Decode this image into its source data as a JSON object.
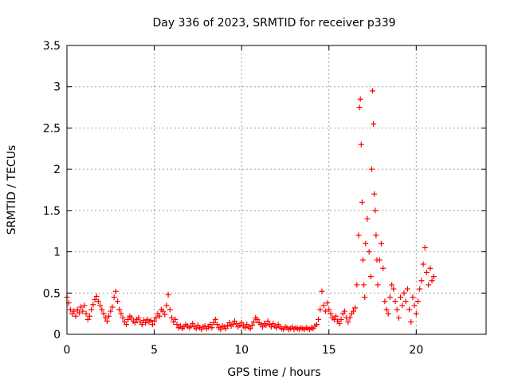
{
  "chart_data": {
    "type": "scatter",
    "title": "Day 336 of 2023, SRMTID for receiver p339",
    "xlabel": "GPS time / hours",
    "ylabel": "SRMTID / TECUs",
    "xlim": [
      0,
      24
    ],
    "ylim": [
      0,
      3.5
    ],
    "x_ticks": [
      0,
      5,
      10,
      15,
      20
    ],
    "x_tick_labels": [
      "0",
      "5",
      "10",
      "15",
      "20"
    ],
    "y_ticks": [
      0,
      0.5,
      1,
      1.5,
      2,
      2.5,
      3,
      3.5
    ],
    "y_tick_labels": [
      "0",
      "0.5",
      "1",
      "1.5",
      "2",
      "2.5",
      "3",
      "3.5"
    ],
    "grid": true,
    "marker": "plus",
    "marker_color": "#ff0000",
    "series": [
      {
        "name": "SRMTID",
        "points": [
          [
            0.0,
            0.45
          ],
          [
            0.1,
            0.38
          ],
          [
            0.2,
            0.3
          ],
          [
            0.3,
            0.25
          ],
          [
            0.4,
            0.28
          ],
          [
            0.5,
            0.22
          ],
          [
            0.6,
            0.3
          ],
          [
            0.7,
            0.26
          ],
          [
            0.8,
            0.33
          ],
          [
            0.9,
            0.28
          ],
          [
            1.0,
            0.35
          ],
          [
            1.1,
            0.25
          ],
          [
            1.2,
            0.18
          ],
          [
            1.3,
            0.22
          ],
          [
            1.4,
            0.3
          ],
          [
            1.5,
            0.36
          ],
          [
            1.6,
            0.42
          ],
          [
            1.7,
            0.46
          ],
          [
            1.8,
            0.4
          ],
          [
            1.9,
            0.35
          ],
          [
            2.0,
            0.3
          ],
          [
            2.1,
            0.25
          ],
          [
            2.2,
            0.2
          ],
          [
            2.3,
            0.16
          ],
          [
            2.4,
            0.22
          ],
          [
            2.5,
            0.28
          ],
          [
            2.6,
            0.33
          ],
          [
            2.7,
            0.45
          ],
          [
            2.8,
            0.52
          ],
          [
            2.9,
            0.4
          ],
          [
            3.0,
            0.3
          ],
          [
            3.1,
            0.25
          ],
          [
            3.2,
            0.2
          ],
          [
            3.3,
            0.15
          ],
          [
            3.4,
            0.12
          ],
          [
            3.5,
            0.18
          ],
          [
            3.6,
            0.22
          ],
          [
            3.7,
            0.2
          ],
          [
            3.8,
            0.16
          ],
          [
            3.9,
            0.14
          ],
          [
            4.0,
            0.18
          ],
          [
            4.1,
            0.2
          ],
          [
            4.2,
            0.15
          ],
          [
            4.3,
            0.12
          ],
          [
            4.4,
            0.17
          ],
          [
            4.5,
            0.14
          ],
          [
            4.6,
            0.18
          ],
          [
            4.7,
            0.15
          ],
          [
            4.8,
            0.17
          ],
          [
            4.9,
            0.12
          ],
          [
            5.0,
            0.16
          ],
          [
            5.1,
            0.2
          ],
          [
            5.2,
            0.25
          ],
          [
            5.3,
            0.22
          ],
          [
            5.4,
            0.3
          ],
          [
            5.5,
            0.28
          ],
          [
            5.6,
            0.24
          ],
          [
            5.7,
            0.35
          ],
          [
            5.8,
            0.48
          ],
          [
            5.9,
            0.3
          ],
          [
            6.0,
            0.2
          ],
          [
            6.1,
            0.15
          ],
          [
            6.2,
            0.18
          ],
          [
            6.3,
            0.12
          ],
          [
            6.4,
            0.08
          ],
          [
            6.5,
            0.1
          ],
          [
            6.6,
            0.07
          ],
          [
            6.7,
            0.09
          ],
          [
            6.8,
            0.12
          ],
          [
            6.9,
            0.1
          ],
          [
            7.0,
            0.08
          ],
          [
            7.1,
            0.1
          ],
          [
            7.2,
            0.13
          ],
          [
            7.3,
            0.09
          ],
          [
            7.4,
            0.07
          ],
          [
            7.5,
            0.11
          ],
          [
            7.6,
            0.08
          ],
          [
            7.7,
            0.06
          ],
          [
            7.8,
            0.09
          ],
          [
            7.9,
            0.1
          ],
          [
            8.0,
            0.07
          ],
          [
            8.1,
            0.09
          ],
          [
            8.2,
            0.12
          ],
          [
            8.3,
            0.08
          ],
          [
            8.4,
            0.14
          ],
          [
            8.5,
            0.18
          ],
          [
            8.6,
            0.12
          ],
          [
            8.7,
            0.08
          ],
          [
            8.8,
            0.06
          ],
          [
            8.9,
            0.1
          ],
          [
            9.0,
            0.09
          ],
          [
            9.1,
            0.07
          ],
          [
            9.2,
            0.11
          ],
          [
            9.3,
            0.14
          ],
          [
            9.4,
            0.1
          ],
          [
            9.5,
            0.12
          ],
          [
            9.6,
            0.16
          ],
          [
            9.7,
            0.13
          ],
          [
            9.8,
            0.09
          ],
          [
            9.9,
            0.11
          ],
          [
            10.0,
            0.14
          ],
          [
            10.1,
            0.1
          ],
          [
            10.2,
            0.08
          ],
          [
            10.3,
            0.12
          ],
          [
            10.4,
            0.09
          ],
          [
            10.5,
            0.07
          ],
          [
            10.6,
            0.11
          ],
          [
            10.7,
            0.15
          ],
          [
            10.8,
            0.2
          ],
          [
            10.9,
            0.18
          ],
          [
            11.0,
            0.14
          ],
          [
            11.1,
            0.12
          ],
          [
            11.2,
            0.09
          ],
          [
            11.3,
            0.13
          ],
          [
            11.4,
            0.11
          ],
          [
            11.5,
            0.16
          ],
          [
            11.6,
            0.12
          ],
          [
            11.7,
            0.09
          ],
          [
            11.8,
            0.13
          ],
          [
            11.9,
            0.1
          ],
          [
            12.0,
            0.08
          ],
          [
            12.1,
            0.12
          ],
          [
            12.2,
            0.09
          ],
          [
            12.3,
            0.07
          ],
          [
            12.4,
            0.06
          ],
          [
            12.5,
            0.09
          ],
          [
            12.6,
            0.08
          ],
          [
            12.7,
            0.06
          ],
          [
            12.8,
            0.07
          ],
          [
            12.9,
            0.09
          ],
          [
            13.0,
            0.06
          ],
          [
            13.1,
            0.08
          ],
          [
            13.2,
            0.07
          ],
          [
            13.3,
            0.06
          ],
          [
            13.4,
            0.08
          ],
          [
            13.5,
            0.07
          ],
          [
            13.6,
            0.06
          ],
          [
            13.7,
            0.08
          ],
          [
            13.8,
            0.07
          ],
          [
            13.9,
            0.06
          ],
          [
            14.0,
            0.08
          ],
          [
            14.1,
            0.07
          ],
          [
            14.2,
            0.1
          ],
          [
            14.3,
            0.12
          ],
          [
            14.4,
            0.18
          ],
          [
            14.5,
            0.3
          ],
          [
            14.6,
            0.52
          ],
          [
            14.7,
            0.35
          ],
          [
            14.8,
            0.28
          ],
          [
            14.9,
            0.38
          ],
          [
            15.0,
            0.3
          ],
          [
            15.1,
            0.25
          ],
          [
            15.2,
            0.2
          ],
          [
            15.3,
            0.18
          ],
          [
            15.4,
            0.22
          ],
          [
            15.5,
            0.16
          ],
          [
            15.6,
            0.13
          ],
          [
            15.7,
            0.18
          ],
          [
            15.8,
            0.25
          ],
          [
            15.9,
            0.28
          ],
          [
            16.0,
            0.2
          ],
          [
            16.1,
            0.15
          ],
          [
            16.2,
            0.2
          ],
          [
            16.3,
            0.25
          ],
          [
            16.4,
            0.28
          ],
          [
            16.5,
            0.32
          ],
          [
            16.6,
            0.6
          ],
          [
            16.7,
            1.2
          ],
          [
            16.75,
            2.75
          ],
          [
            16.8,
            2.85
          ],
          [
            16.85,
            2.3
          ],
          [
            16.9,
            1.6
          ],
          [
            16.95,
            0.9
          ],
          [
            17.0,
            0.6
          ],
          [
            17.05,
            0.45
          ],
          [
            17.1,
            1.1
          ],
          [
            17.2,
            1.4
          ],
          [
            17.3,
            1.0
          ],
          [
            17.4,
            0.7
          ],
          [
            17.45,
            2.0
          ],
          [
            17.5,
            2.95
          ],
          [
            17.55,
            2.55
          ],
          [
            17.6,
            1.7
          ],
          [
            17.65,
            1.5
          ],
          [
            17.7,
            1.2
          ],
          [
            17.75,
            0.9
          ],
          [
            17.8,
            0.6
          ],
          [
            17.9,
            0.9
          ],
          [
            18.0,
            1.1
          ],
          [
            18.1,
            0.8
          ],
          [
            18.2,
            0.4
          ],
          [
            18.3,
            0.3
          ],
          [
            18.4,
            0.25
          ],
          [
            18.5,
            0.45
          ],
          [
            18.6,
            0.6
          ],
          [
            18.7,
            0.55
          ],
          [
            18.8,
            0.4
          ],
          [
            18.9,
            0.3
          ],
          [
            19.0,
            0.2
          ],
          [
            19.1,
            0.45
          ],
          [
            19.2,
            0.35
          ],
          [
            19.3,
            0.5
          ],
          [
            19.4,
            0.4
          ],
          [
            19.5,
            0.55
          ],
          [
            19.6,
            0.3
          ],
          [
            19.7,
            0.15
          ],
          [
            19.8,
            0.45
          ],
          [
            19.9,
            0.35
          ],
          [
            20.0,
            0.25
          ],
          [
            20.1,
            0.4
          ],
          [
            20.2,
            0.55
          ],
          [
            20.3,
            0.65
          ],
          [
            20.4,
            0.85
          ],
          [
            20.5,
            1.05
          ],
          [
            20.6,
            0.75
          ],
          [
            20.7,
            0.6
          ],
          [
            20.8,
            0.8
          ],
          [
            20.9,
            0.65
          ],
          [
            21.0,
            0.7
          ]
        ]
      }
    ]
  }
}
